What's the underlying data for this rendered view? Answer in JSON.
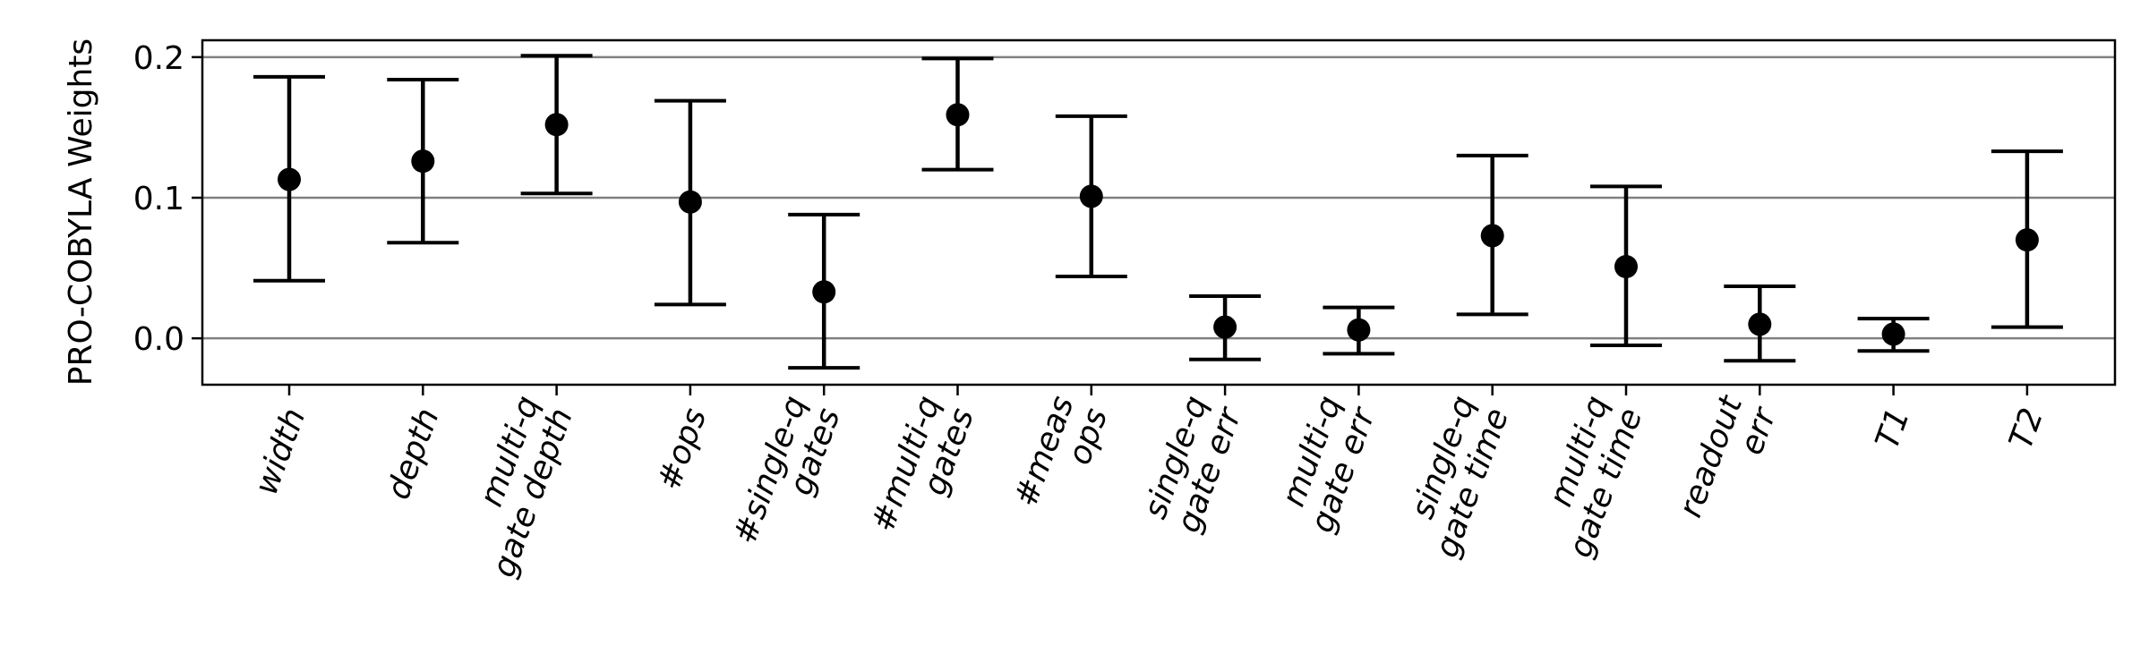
{
  "chart_data": {
    "type": "errorbar",
    "ylabel": "PRO-COBYLA Weights",
    "ylim": [
      -0.033,
      0.212
    ],
    "yticks": [
      0.0,
      0.1,
      0.2
    ],
    "ytick_labels": [
      "0.0",
      "0.1",
      "0.2"
    ],
    "grid": "horizontal",
    "categories": [
      [
        "width"
      ],
      [
        "depth"
      ],
      [
        "multi-q",
        "gate depth"
      ],
      [
        "#ops"
      ],
      [
        "#single-q",
        "gates"
      ],
      [
        "#multi-q",
        "gates"
      ],
      [
        "#meas",
        "ops"
      ],
      [
        "single-q",
        "gate err"
      ],
      [
        "multi-q",
        "gate err"
      ],
      [
        "single-q",
        "gate time"
      ],
      [
        "multi-q",
        "gate time"
      ],
      [
        "readout",
        "err"
      ],
      [
        "T1"
      ],
      [
        "T2"
      ]
    ],
    "values": [
      0.113,
      0.126,
      0.152,
      0.097,
      0.033,
      0.159,
      0.101,
      0.008,
      0.006,
      0.073,
      0.051,
      0.01,
      0.003,
      0.07
    ],
    "lower": [
      0.041,
      0.068,
      0.103,
      0.024,
      -0.021,
      0.12,
      0.044,
      -0.015,
      -0.011,
      0.017,
      -0.005,
      -0.016,
      -0.009,
      0.008
    ],
    "upper": [
      0.186,
      0.184,
      0.201,
      0.169,
      0.088,
      0.199,
      0.158,
      0.03,
      0.022,
      0.13,
      0.108,
      0.037,
      0.014,
      0.133
    ],
    "colors": {
      "marker": "#000000",
      "grid": "#808080",
      "frame": "#000000"
    }
  }
}
